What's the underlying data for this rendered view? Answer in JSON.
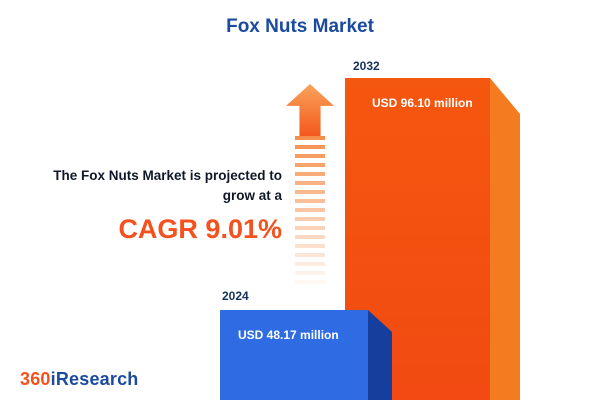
{
  "title": "Fox Nuts Market",
  "annotation": {
    "line1": "The Fox Nuts Market is projected to",
    "line2": "grow at a",
    "cagr": "CAGR 9.01%"
  },
  "bars": [
    {
      "year": "2024",
      "label": "USD 48.17 million",
      "color": "#2f6ce3"
    },
    {
      "year": "2032",
      "label": "USD 96.10 million",
      "color": "#f24a12"
    }
  ],
  "logo": {
    "part1": "360",
    "part2": "iResearch"
  },
  "colors": {
    "title_blue": "#1b4a9e",
    "accent_orange": "#f4511e",
    "bar_blue": "#2f6ce3",
    "bar_blue_side": "#163e9c",
    "bar_orange": "#f24a12",
    "bar_orange_side": "#f57b20"
  },
  "chart_data": {
    "type": "bar",
    "title": "Fox Nuts Market",
    "categories": [
      "2024",
      "2032"
    ],
    "values": [
      48.17,
      96.1
    ],
    "value_labels": [
      "USD 48.17 million",
      "USD 96.10 million"
    ],
    "unit": "USD million",
    "cagr_percent": 9.01,
    "xlabel": "",
    "ylabel": "",
    "ylim": [
      0,
      100
    ],
    "grid": false,
    "legend": false,
    "annotation": "The Fox Nuts Market is projected to grow at a CAGR 9.01%"
  }
}
